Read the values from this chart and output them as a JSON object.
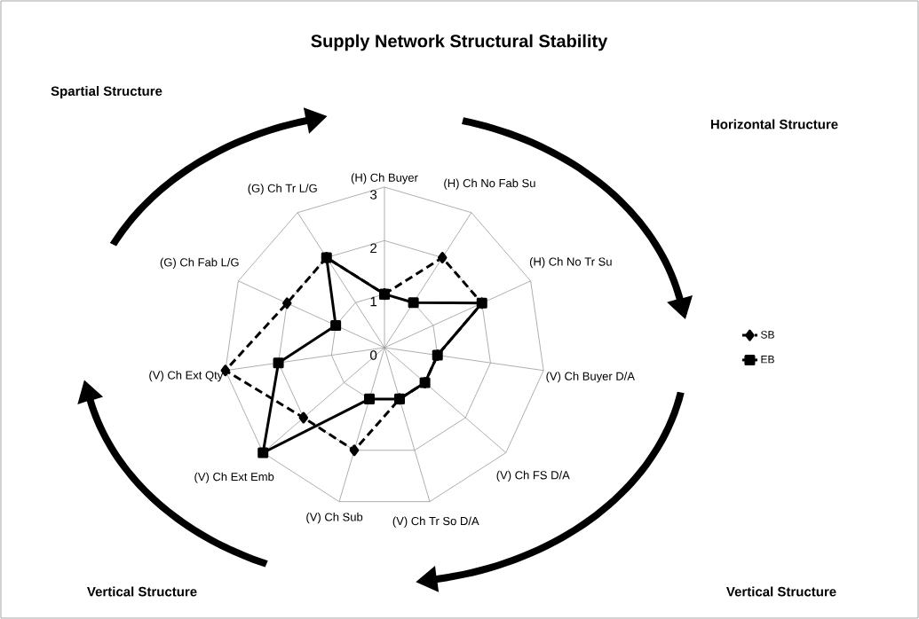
{
  "chart_data": {
    "type": "radar",
    "title": "Supply Network Structural Stability",
    "categories": [
      "(H) Ch Buyer",
      "(H) Ch No Fab Su",
      "(H) Ch No Tr Su",
      "(V) Ch Buyer D/A",
      "(V) Ch FS D/A",
      "(V) Ch Tr So D/A",
      "(V) Ch Sub",
      "(V) Ch Ext Emb",
      "(V) Ch Ext Qty",
      "(G) Ch Fab L/G",
      "(G) Ch Tr L/G"
    ],
    "series": [
      {
        "name": "SB",
        "color": "#000000",
        "marker": "diamond",
        "line_style": "dashed",
        "values": [
          1,
          2,
          2,
          1,
          1,
          1,
          2,
          2,
          3,
          2,
          2
        ]
      },
      {
        "name": "EB",
        "color": "#000000",
        "marker": "square",
        "line_style": "solid",
        "values": [
          1,
          1,
          2,
          1,
          1,
          1,
          1,
          3,
          2,
          1,
          2
        ]
      }
    ],
    "ylim": [
      0,
      3
    ],
    "yticks": [
      0,
      1,
      2,
      3
    ],
    "grid": true,
    "legend": "right",
    "annotations": [
      "Spartial Structure",
      "Horizontal Structure",
      "Vertical  Structure",
      "Vertical  Structure"
    ]
  }
}
